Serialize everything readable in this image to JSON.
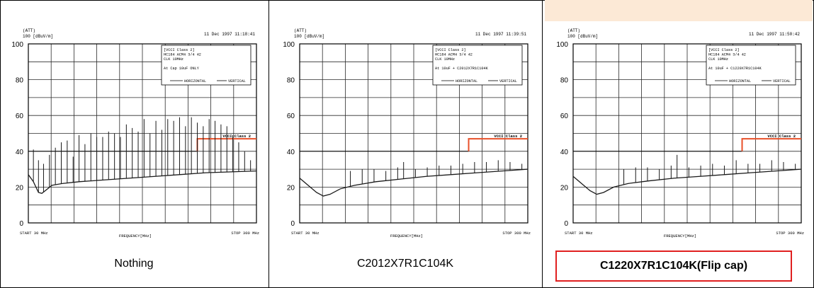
{
  "chart_data": [
    {
      "type": "line",
      "caption": "Nothing",
      "header": "(ATT)\n100 [dBuV/m]",
      "timestamp": "11 Dec 1997 11:18:41",
      "legend_lines": [
        "[VCCI Class 2]",
        "HC184 ACM4 3/4 42",
        "CLK 10MHz",
        "",
        "At Cap 10uF ONLY"
      ],
      "legend_series": [
        "HORIZONTAL",
        "VERTICAL"
      ],
      "limit_label": "VCCI Class 2",
      "xlabel": "FREQUENCY[MHz]",
      "x_start_label": "START 30 MHz",
      "x_stop_label": "STOP 300 MHz",
      "yticks": [
        100,
        80,
        60,
        40,
        20,
        0
      ],
      "ylim": [
        0,
        100
      ],
      "xlim": [
        30,
        300
      ],
      "limit_line": [
        [
          30,
          40
        ],
        [
          230,
          40
        ],
        [
          230,
          47
        ],
        [
          300,
          47
        ]
      ],
      "noise_floor": [
        [
          30,
          27
        ],
        [
          36,
          23
        ],
        [
          42,
          17
        ],
        [
          46,
          16.5
        ],
        [
          50,
          18
        ],
        [
          58,
          21
        ],
        [
          70,
          22
        ],
        [
          90,
          23
        ],
        [
          120,
          24
        ],
        [
          150,
          25
        ],
        [
          180,
          26
        ],
        [
          210,
          27
        ],
        [
          240,
          28
        ],
        [
          270,
          28.5
        ],
        [
          300,
          29
        ]
      ],
      "spikes": [
        [
          36,
          41
        ],
        [
          42,
          35
        ],
        [
          48,
          33
        ],
        [
          55,
          38
        ],
        [
          62,
          42
        ],
        [
          69,
          45
        ],
        [
          76,
          46
        ],
        [
          83,
          37
        ],
        [
          90,
          49
        ],
        [
          97,
          44
        ],
        [
          104,
          50
        ],
        [
          111,
          48
        ],
        [
          118,
          48
        ],
        [
          125,
          51
        ],
        [
          132,
          50
        ],
        [
          139,
          48
        ],
        [
          146,
          55
        ],
        [
          153,
          53
        ],
        [
          160,
          51
        ],
        [
          167,
          58
        ],
        [
          174,
          50
        ],
        [
          181,
          57
        ],
        [
          188,
          52
        ],
        [
          195,
          58
        ],
        [
          202,
          57
        ],
        [
          209,
          59
        ],
        [
          216,
          54
        ],
        [
          223,
          59
        ],
        [
          230,
          56
        ],
        [
          237,
          54
        ],
        [
          244,
          58
        ],
        [
          251,
          57
        ],
        [
          258,
          55
        ],
        [
          265,
          54
        ],
        [
          272,
          49
        ],
        [
          279,
          45
        ],
        [
          286,
          40
        ],
        [
          293,
          35
        ]
      ]
    },
    {
      "type": "line",
      "caption": "C2012X7R1C104K",
      "header": "(ATT)\n100 [dBuV/m]",
      "timestamp": "11 Dec 1997 11:39:51",
      "legend_lines": [
        "[VCCI Class 2]",
        "HC184 ACM4 3/4 42",
        "CLK 10MHz",
        "",
        "At 10uF + C2012X7R1C104K"
      ],
      "legend_series": [
        "HORIZONTAL",
        "VERTICAL"
      ],
      "limit_label": "VCCI Class 2",
      "xlabel": "FREQUENCY[MHz]",
      "x_start_label": "START 30 MHz",
      "x_stop_label": "STOP 300 MHz",
      "yticks": [
        100,
        80,
        60,
        40,
        20,
        0
      ],
      "ylim": [
        0,
        100
      ],
      "xlim": [
        30,
        300
      ],
      "limit_line": [
        [
          30,
          40
        ],
        [
          230,
          40
        ],
        [
          230,
          47
        ],
        [
          300,
          47
        ]
      ],
      "noise_floor": [
        [
          30,
          25
        ],
        [
          40,
          21
        ],
        [
          50,
          17
        ],
        [
          58,
          15
        ],
        [
          66,
          16
        ],
        [
          78,
          19
        ],
        [
          95,
          21
        ],
        [
          120,
          23
        ],
        [
          150,
          24.5
        ],
        [
          180,
          26
        ],
        [
          210,
          27
        ],
        [
          240,
          28
        ],
        [
          270,
          29
        ],
        [
          300,
          30
        ]
      ],
      "spikes": [
        [
          90,
          29
        ],
        [
          104,
          30
        ],
        [
          118,
          30
        ],
        [
          132,
          29
        ],
        [
          146,
          31
        ],
        [
          153,
          34
        ],
        [
          167,
          30
        ],
        [
          181,
          31
        ],
        [
          195,
          32
        ],
        [
          209,
          32
        ],
        [
          223,
          33
        ],
        [
          237,
          34
        ],
        [
          251,
          34
        ],
        [
          265,
          35
        ],
        [
          279,
          34
        ],
        [
          293,
          33
        ]
      ]
    },
    {
      "type": "line",
      "caption": "C1220X7R1C104K(Flip cap)",
      "header": "(ATT)\n100 [dBuV/m]",
      "timestamp": "11 Dec 1997 11:50:42",
      "legend_lines": [
        "[VCCI Class 2]",
        "HC184 ACM4 3/4 42",
        "CLK 10MHz",
        "",
        "At 10uF + C1220X7R1C104K"
      ],
      "legend_series": [
        "HORIZONTAL",
        "VERTICAL"
      ],
      "limit_label": "VCCI Class 2",
      "xlabel": "FREQUENCY[MHz]",
      "x_start_label": "START 30 MHz",
      "x_stop_label": "STOP 300 MHz",
      "yticks": [
        100,
        80,
        60,
        40,
        20,
        0
      ],
      "ylim": [
        0,
        100
      ],
      "xlim": [
        30,
        300
      ],
      "limit_line": [
        [
          30,
          40
        ],
        [
          230,
          40
        ],
        [
          230,
          47
        ],
        [
          300,
          47
        ]
      ],
      "noise_floor": [
        [
          30,
          26
        ],
        [
          40,
          22
        ],
        [
          50,
          18
        ],
        [
          58,
          16
        ],
        [
          66,
          17
        ],
        [
          78,
          20
        ],
        [
          95,
          22
        ],
        [
          120,
          23.5
        ],
        [
          150,
          25
        ],
        [
          180,
          26
        ],
        [
          210,
          27
        ],
        [
          240,
          28
        ],
        [
          270,
          29
        ],
        [
          300,
          30
        ]
      ],
      "spikes": [
        [
          90,
          30
        ],
        [
          104,
          31
        ],
        [
          118,
          31
        ],
        [
          132,
          30
        ],
        [
          146,
          32
        ],
        [
          153,
          38
        ],
        [
          167,
          31
        ],
        [
          181,
          32
        ],
        [
          195,
          33
        ],
        [
          209,
          32
        ],
        [
          223,
          35
        ],
        [
          237,
          33
        ],
        [
          251,
          33
        ],
        [
          265,
          35
        ],
        [
          279,
          34
        ],
        [
          293,
          33
        ]
      ]
    }
  ],
  "colors": {
    "trace": "#1a1a1a",
    "grid": "#2a2a2a",
    "limit": "#e8502a",
    "caption_border": "#e02020",
    "highlight": "#fce9d6"
  }
}
